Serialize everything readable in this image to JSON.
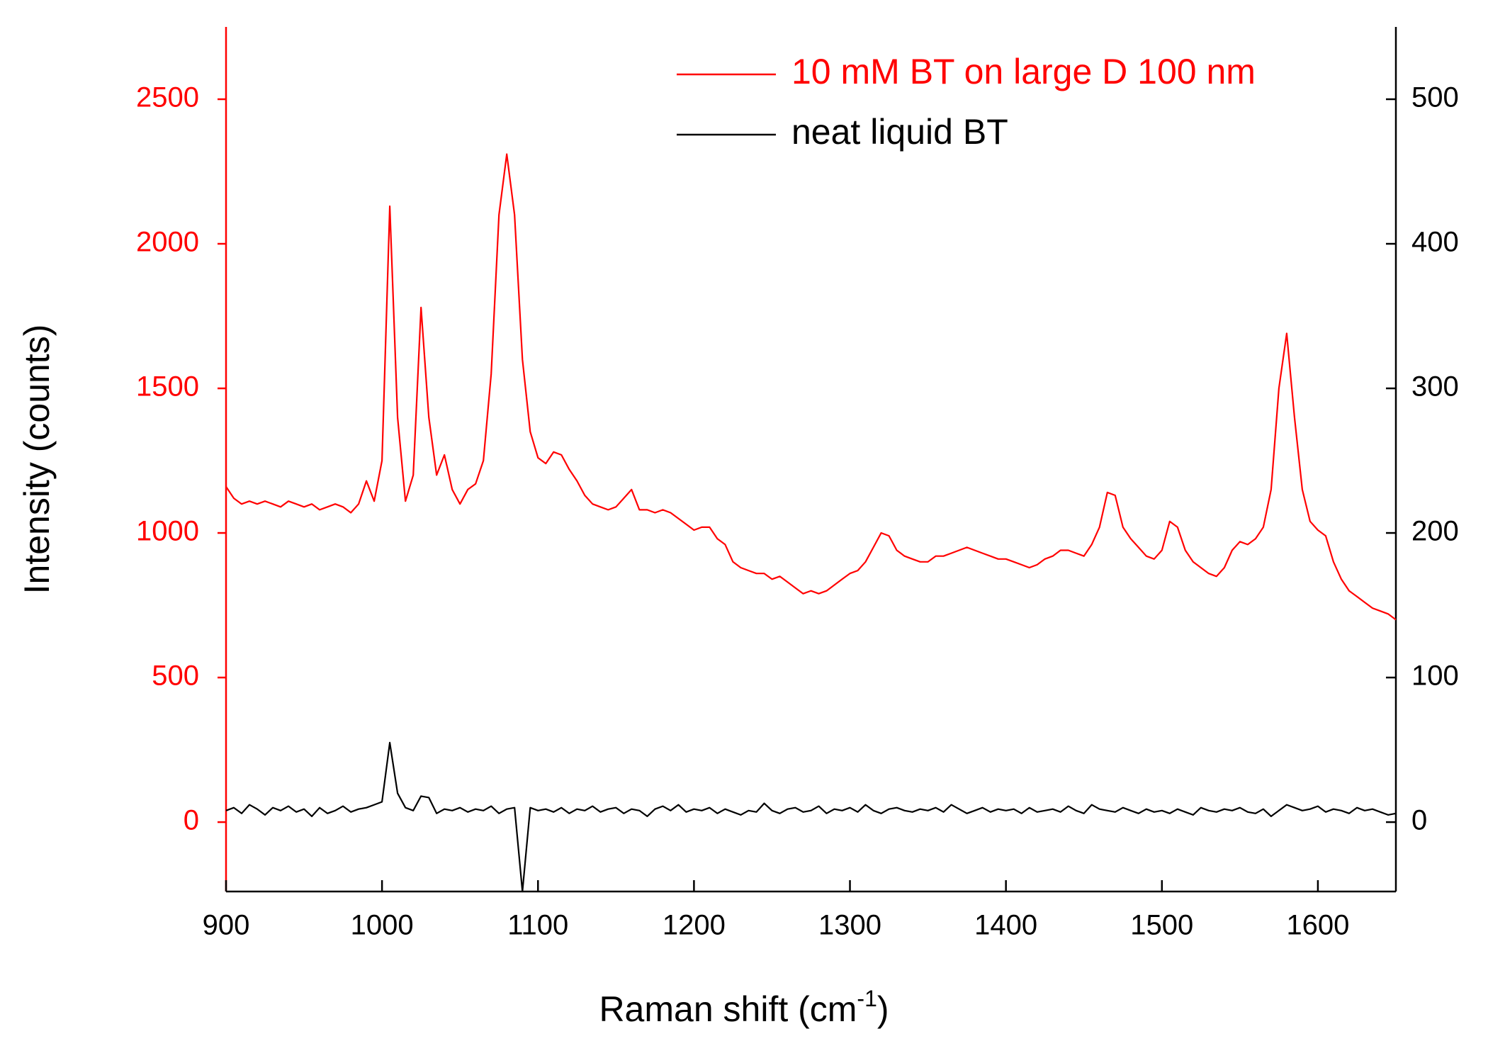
{
  "chart_data": {
    "type": "line",
    "y_label": "Intensity (counts)",
    "x_label": {
      "text": "Raman shift (cm",
      "sup": "-1",
      "end": ")"
    },
    "xlim": [
      900,
      1650
    ],
    "xticks": [
      900,
      1000,
      1100,
      1200,
      1300,
      1400,
      1500,
      1600
    ],
    "ylim": [
      -240,
      2750
    ],
    "yticks": [
      0,
      500,
      1000,
      1500,
      2000,
      2500
    ],
    "y2lim": [
      -48,
      550
    ],
    "y2ticks": [
      0,
      100,
      200,
      300,
      400,
      500
    ],
    "legend": "top-right",
    "x": [
      900,
      905,
      910,
      915,
      920,
      925,
      930,
      935,
      940,
      945,
      950,
      955,
      960,
      965,
      970,
      975,
      980,
      985,
      990,
      995,
      1000,
      1005,
      1010,
      1015,
      1020,
      1025,
      1030,
      1035,
      1040,
      1045,
      1050,
      1055,
      1060,
      1065,
      1070,
      1075,
      1080,
      1085,
      1090,
      1095,
      1100,
      1105,
      1110,
      1115,
      1120,
      1125,
      1130,
      1135,
      1140,
      1145,
      1150,
      1155,
      1160,
      1165,
      1170,
      1175,
      1180,
      1185,
      1190,
      1195,
      1200,
      1205,
      1210,
      1215,
      1220,
      1225,
      1230,
      1235,
      1240,
      1245,
      1250,
      1255,
      1260,
      1265,
      1270,
      1275,
      1280,
      1285,
      1290,
      1295,
      1300,
      1305,
      1310,
      1315,
      1320,
      1325,
      1330,
      1335,
      1340,
      1345,
      1350,
      1355,
      1360,
      1365,
      1370,
      1375,
      1380,
      1385,
      1390,
      1395,
      1400,
      1405,
      1410,
      1415,
      1420,
      1425,
      1430,
      1435,
      1440,
      1445,
      1450,
      1455,
      1460,
      1465,
      1470,
      1475,
      1480,
      1485,
      1490,
      1495,
      1500,
      1505,
      1510,
      1515,
      1520,
      1525,
      1530,
      1535,
      1540,
      1545,
      1550,
      1555,
      1560,
      1565,
      1570,
      1575,
      1580,
      1585,
      1590,
      1595,
      1600,
      1605,
      1610,
      1615,
      1620,
      1625,
      1630,
      1635,
      1640,
      1645,
      1650
    ],
    "series": [
      {
        "name": "10 mM BT on large D 100 nm",
        "color": "#ff0000",
        "values": [
          1160,
          1120,
          1100,
          1110,
          1100,
          1110,
          1100,
          1090,
          1110,
          1100,
          1090,
          1100,
          1080,
          1090,
          1100,
          1090,
          1070,
          1100,
          1180,
          1110,
          1250,
          2130,
          1400,
          1110,
          1200,
          1780,
          1400,
          1200,
          1270,
          1150,
          1100,
          1150,
          1170,
          1250,
          1550,
          2100,
          2310,
          2100,
          1600,
          1350,
          1260,
          1240,
          1280,
          1270,
          1220,
          1180,
          1130,
          1100,
          1090,
          1080,
          1090,
          1120,
          1150,
          1080,
          1080,
          1070,
          1080,
          1070,
          1050,
          1030,
          1010,
          1020,
          1020,
          980,
          960,
          900,
          880,
          870,
          860,
          860,
          840,
          850,
          830,
          810,
          790,
          800,
          790,
          800,
          820,
          840,
          860,
          870,
          900,
          950,
          1000,
          990,
          940,
          920,
          910,
          900,
          900,
          920,
          920,
          930,
          940,
          950,
          940,
          930,
          920,
          910,
          910,
          900,
          890,
          880,
          890,
          910,
          920,
          940,
          940,
          930,
          920,
          960,
          1020,
          1140,
          1130,
          1020,
          980,
          950,
          920,
          910,
          940,
          1040,
          1020,
          940,
          900,
          880,
          860,
          850,
          880,
          940,
          970,
          960,
          980,
          1020,
          1150,
          1500,
          1690,
          1400,
          1150,
          1040,
          1010,
          990,
          900,
          840,
          800,
          780,
          760,
          740,
          730,
          720,
          700
        ]
      },
      {
        "name": "neat liquid BT",
        "color": "#000000",
        "axis": "y2",
        "values": [
          8,
          10,
          6,
          12,
          9,
          5,
          10,
          8,
          11,
          7,
          9,
          4,
          10,
          6,
          8,
          11,
          7,
          9,
          10,
          12,
          14,
          55,
          20,
          10,
          8,
          18,
          17,
          6,
          9,
          8,
          10,
          7,
          9,
          8,
          11,
          6,
          9,
          10,
          -48,
          10,
          8,
          9,
          7,
          10,
          6,
          9,
          8,
          11,
          7,
          9,
          10,
          6,
          9,
          8,
          4,
          9,
          11,
          8,
          12,
          7,
          9,
          8,
          10,
          6,
          9,
          7,
          5,
          8,
          7,
          13,
          8,
          6,
          9,
          10,
          7,
          8,
          11,
          6,
          9,
          8,
          10,
          7,
          12,
          8,
          6,
          9,
          10,
          8,
          7,
          9,
          8,
          10,
          7,
          12,
          9,
          6,
          8,
          10,
          7,
          9,
          8,
          9,
          6,
          10,
          7,
          8,
          9,
          7,
          11,
          8,
          6,
          12,
          9,
          8,
          7,
          10,
          8,
          6,
          9,
          7,
          8,
          6,
          9,
          7,
          5,
          10,
          8,
          7,
          9,
          8,
          10,
          7,
          6,
          9,
          4,
          8,
          12,
          10,
          8,
          9,
          11,
          7,
          9,
          8,
          6,
          10,
          8,
          9,
          7,
          5,
          6
        ]
      }
    ]
  }
}
